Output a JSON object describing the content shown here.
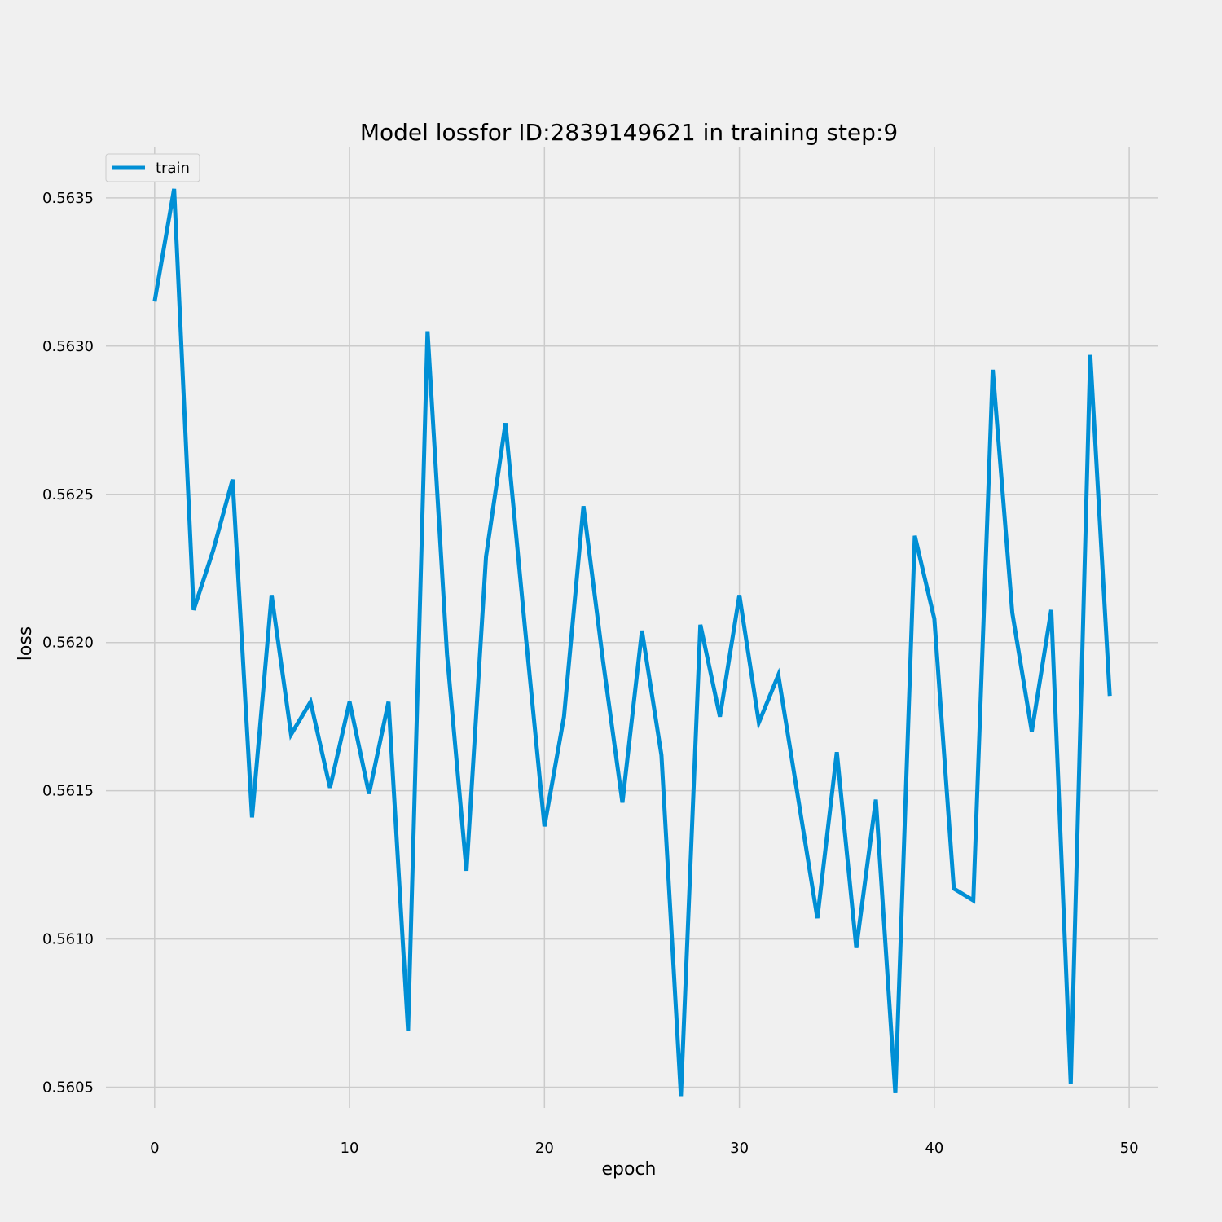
{
  "chart_data": {
    "type": "line",
    "title": "Model lossfor ID:2839149621 in training step:9",
    "xlabel": "epoch",
    "ylabel": "loss",
    "xlim": [
      -2.5,
      51.5
    ],
    "ylim": [
      0.56043,
      0.56367
    ],
    "xticks": [
      0,
      10,
      20,
      30,
      40,
      50
    ],
    "xtick_labels": [
      "0",
      "10",
      "20",
      "30",
      "40",
      "50"
    ],
    "yticks": [
      0.5605,
      0.561,
      0.5615,
      0.562,
      0.5625,
      0.563,
      0.5635
    ],
    "ytick_labels": [
      "0.5605",
      "0.5610",
      "0.5615",
      "0.5620",
      "0.5625",
      "0.5630",
      "0.5635"
    ],
    "grid": true,
    "legend_position": "top-left",
    "x": [
      0,
      1,
      2,
      3,
      4,
      5,
      6,
      7,
      8,
      9,
      10,
      11,
      12,
      13,
      14,
      15,
      16,
      17,
      18,
      19,
      20,
      21,
      22,
      23,
      24,
      25,
      26,
      27,
      28,
      29,
      30,
      31,
      32,
      33,
      34,
      35,
      36,
      37,
      38,
      39,
      40,
      41,
      42,
      43,
      44,
      45,
      46,
      47,
      48,
      49
    ],
    "series": [
      {
        "name": "train",
        "color": "#008fd5",
        "values": [
          0.56315,
          0.56353,
          0.56211,
          0.56231,
          0.56255,
          0.56141,
          0.56216,
          0.56169,
          0.5618,
          0.56151,
          0.5618,
          0.56149,
          0.5618,
          0.56069,
          0.56305,
          0.56196,
          0.56123,
          0.56229,
          0.56274,
          0.56205,
          0.56138,
          0.56175,
          0.56246,
          0.56194,
          0.56146,
          0.56204,
          0.56162,
          0.56047,
          0.56206,
          0.56175,
          0.56216,
          0.56173,
          0.56189,
          0.56148,
          0.56107,
          0.56163,
          0.56097,
          0.56147,
          0.56048,
          0.56236,
          0.56208,
          0.56117,
          0.56113,
          0.56292,
          0.5621,
          0.5617,
          0.56211,
          0.56051,
          0.56297,
          0.56182
        ]
      }
    ]
  }
}
